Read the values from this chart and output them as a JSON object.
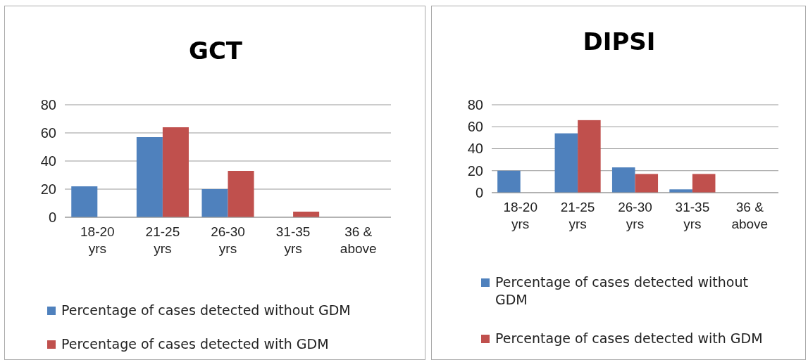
{
  "chart_data": [
    {
      "type": "bar",
      "title": "GCT",
      "categories": [
        "18-20 yrs",
        "21-25 yrs",
        "26-30 yrs",
        "31-35 yrs",
        "36 & above"
      ],
      "series": [
        {
          "name": "Percentage of cases detected without GDM",
          "color": "#4f81bd",
          "values": [
            22,
            57,
            20,
            0,
            0
          ]
        },
        {
          "name": "Percentage of cases detected with GDM",
          "color": "#c0504d",
          "values": [
            0,
            64,
            33,
            4,
            0
          ]
        }
      ],
      "ylim": [
        0,
        80
      ],
      "yticks": [
        0,
        20,
        40,
        60,
        80
      ],
      "grid": "y",
      "legend": "bottom"
    },
    {
      "type": "bar",
      "title": "DIPSI",
      "categories": [
        "18-20 yrs",
        "21-25 yrs",
        "26-30 yrs",
        "31-35 yrs",
        "36 & above"
      ],
      "series": [
        {
          "name": "Percentage of cases detected without GDM",
          "color": "#4f81bd",
          "values": [
            20,
            54,
            23,
            3,
            0
          ]
        },
        {
          "name": "Percentage of cases detected with GDM",
          "color": "#c0504d",
          "values": [
            0,
            66,
            17,
            17,
            0
          ]
        }
      ],
      "ylim": [
        0,
        80
      ],
      "yticks": [
        0,
        20,
        40,
        60,
        80
      ],
      "grid": "y",
      "legend": "bottom"
    }
  ]
}
